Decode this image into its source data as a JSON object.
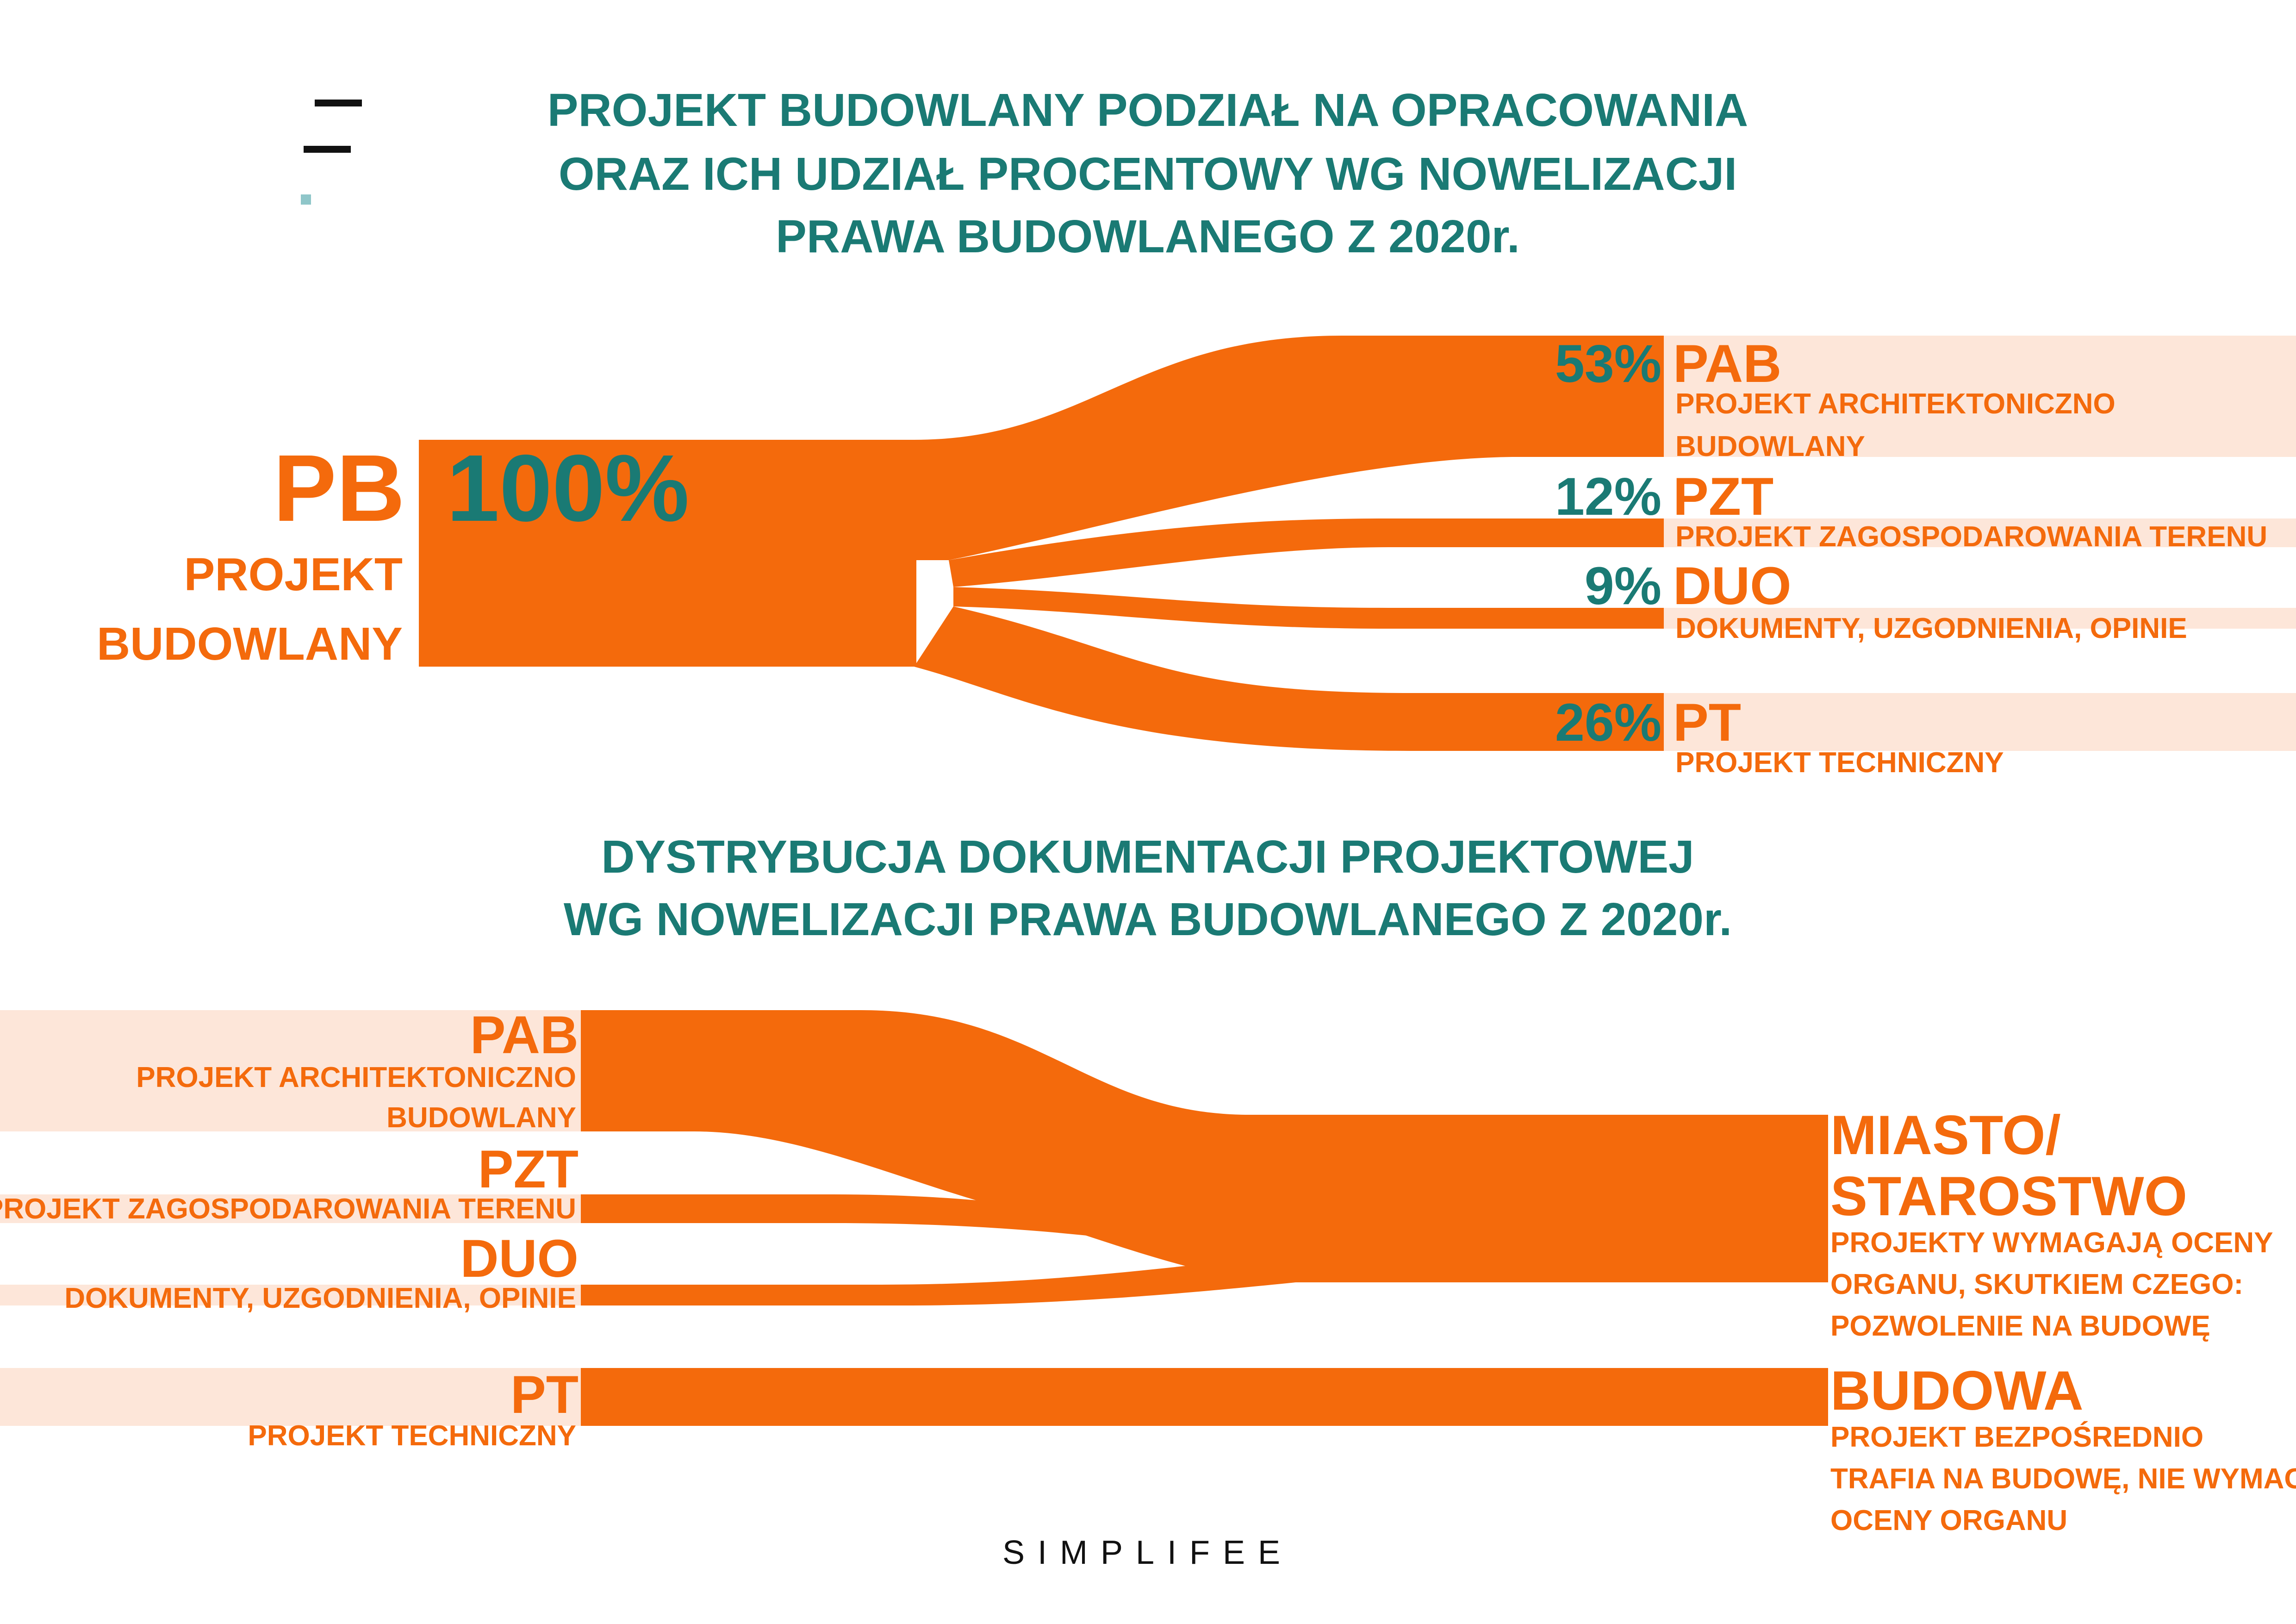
{
  "colors": {
    "accent": "#f46a0c",
    "accent_light": "#fde6d9",
    "title": "#1a7a74",
    "logo_dark": "#111111",
    "logo_light": "#8fc6c9"
  },
  "title1": {
    "line1": "PROJEKT BUDOWLANY PODZIAŁ NA OPRACOWANIA",
    "line2": "ORAZ ICH UDZIAŁ PROCENTOWY WG NOWELIZACJI",
    "line3": "PRAWA BUDOWLANEGO Z 2020r."
  },
  "source": {
    "code": "PB",
    "percent": "100%",
    "name_line1": "PROJEKT",
    "name_line2": "BUDOWLANY"
  },
  "parts": [
    {
      "code": "PAB",
      "percent": "53%",
      "share": 53,
      "desc_line1": "PROJEKT ARCHITEKTONICZNO",
      "desc_line2": "BUDOWLANY"
    },
    {
      "code": "PZT",
      "percent": "12%",
      "share": 12,
      "desc_line1": "PROJEKT ZAGOSPODAROWANIA TERENU",
      "desc_line2": ""
    },
    {
      "code": "DUO",
      "percent": "9%",
      "share": 9,
      "desc_line1": "DOKUMENTY, UZGODNIENIA, OPINIE",
      "desc_line2": ""
    },
    {
      "code": "PT",
      "percent": "26%",
      "share": 26,
      "desc_line1": "PROJEKT TECHNICZNY",
      "desc_line2": ""
    }
  ],
  "title2": {
    "line1": "DYSTRYBUCJA DOKUMENTACJI PROJEKTOWEJ",
    "line2": "WG NOWELIZACJI PRAWA BUDOWLANEGO Z 2020r."
  },
  "destinations": [
    {
      "title_line1": "MIASTO/",
      "title_line2": "STAROSTWO",
      "desc_line1": "PROJEKTY WYMAGAJĄ OCENY",
      "desc_line2": "ORGANU, SKUTKIEM CZEGO:",
      "desc_line3": "POZWOLENIE NA BUDOWĘ",
      "sources": [
        "PAB",
        "PZT",
        "DUO"
      ]
    },
    {
      "title_line1": "BUDOWA",
      "desc_line1": "PROJEKT BEZPOŚREDNIO",
      "desc_line2": "TRAFIA NA BUDOWĘ, NIE WYMAGA",
      "desc_line3": "OCENY ORGANU",
      "sources": [
        "PT"
      ]
    }
  ],
  "brand": {
    "name": "SIMPLIFEE"
  }
}
